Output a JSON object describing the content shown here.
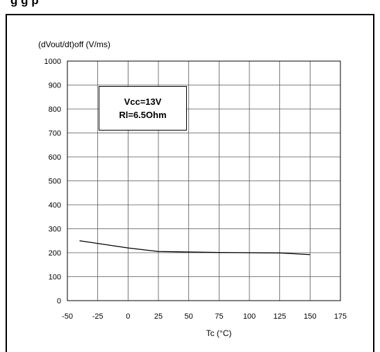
{
  "header": {
    "partial_title": "g                         g   p"
  },
  "chart_data": {
    "type": "line",
    "title": "",
    "ylabel": "(dVout/dt)off (V/ms)",
    "xlabel": "Tc (°C)",
    "xlim": [
      -50,
      175
    ],
    "ylim": [
      0,
      1000
    ],
    "x_ticks": [
      -50,
      -25,
      0,
      25,
      50,
      75,
      100,
      125,
      150,
      175
    ],
    "y_ticks": [
      0,
      100,
      200,
      300,
      400,
      500,
      600,
      700,
      800,
      900,
      1000
    ],
    "grid": true,
    "series": [
      {
        "x": [
          -40,
          0,
          25,
          75,
          125,
          150
        ],
        "y": [
          250,
          220,
          205,
          201,
          199,
          192
        ]
      }
    ],
    "annotation": {
      "line1": "Vcc=13V",
      "line2": "Rl=6.5Ohm"
    }
  }
}
